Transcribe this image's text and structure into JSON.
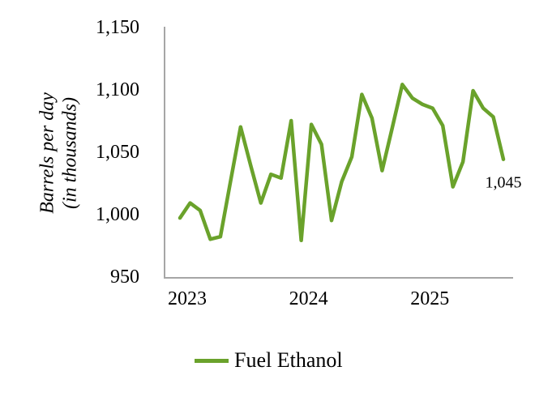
{
  "chart": {
    "y_axis_title_line1": "Barrels per day",
    "y_axis_title_line2": "(in thousands)",
    "legend_label": "Fuel Ethanol",
    "last_value_label": "1,045"
  },
  "chart_data": {
    "type": "line",
    "title": "",
    "xlabel": "",
    "ylabel": "Barrels per day (in thousands)",
    "ylim": [
      950,
      1150
    ],
    "grid": false,
    "legend_position": "bottom",
    "axis_color": "#A6A6A6",
    "text_color": "#000000",
    "series": [
      {
        "name": "Fuel Ethanol",
        "color": "#6AA22B",
        "x": [
          "Jan 2023",
          "Feb 2023",
          "Mar 2023",
          "Apr 2023",
          "May 2023",
          "Jun 2023",
          "Jul 2023",
          "Aug 2023",
          "Sep 2023",
          "Oct 2023",
          "Nov 2023",
          "Dec 2023",
          "Jan 2024",
          "Feb 2024",
          "Mar 2024",
          "Apr 2024",
          "May 2024",
          "Jun 2024",
          "Jul 2024",
          "Aug 2024",
          "Sep 2024",
          "Oct 2024",
          "Nov 2024",
          "Dec 2024",
          "Jan 2025",
          "Feb 2025",
          "Mar 2025",
          "Apr 2025",
          "May 2025",
          "Jun 2025",
          "Jul 2025",
          "Aug 2025",
          "Sep 2025"
        ],
        "values": [
          998,
          1010,
          1004,
          981,
          983,
          1027,
          1071,
          1040,
          1010,
          1033,
          1030,
          1076,
          980,
          1073,
          1057,
          996,
          1027,
          1047,
          1097,
          1078,
          1036,
          1070,
          1105,
          1094,
          1089,
          1086,
          1072,
          1023,
          1043,
          1100,
          1086,
          1079,
          1045
        ]
      }
    ],
    "y_ticks": [
      {
        "label": "1,150",
        "value": 1150
      },
      {
        "label": "1,100",
        "value": 1100
      },
      {
        "label": "1,050",
        "value": 1050
      },
      {
        "label": "1,000",
        "value": 1000
      },
      {
        "label": "950",
        "value": 950
      }
    ],
    "x_ticks": [
      {
        "label": "2023",
        "month_index": 0
      },
      {
        "label": "2024",
        "month_index": 12
      },
      {
        "label": "2025",
        "month_index": 24
      }
    ],
    "last_point_label": "1,045"
  }
}
